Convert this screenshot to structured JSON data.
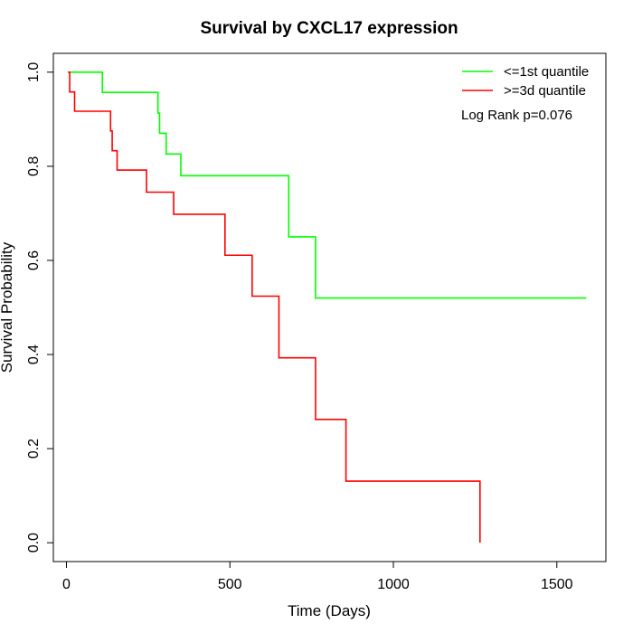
{
  "chart_data": {
    "type": "line",
    "title": "Survival by CXCL17 expression",
    "xlabel": "Time (Days)",
    "ylabel": "Survival Probability",
    "xlim": [
      -40,
      1650
    ],
    "ylim": [
      -0.04,
      1.04
    ],
    "x_ticks": [
      0,
      500,
      1000,
      1500
    ],
    "x_tick_labels": [
      "0",
      "500",
      "1000",
      "1500"
    ],
    "y_ticks": [
      0.0,
      0.2,
      0.4,
      0.6,
      0.8,
      1.0
    ],
    "y_tick_labels": [
      "0.0",
      "0.2",
      "0.4",
      "0.6",
      "0.8",
      "1.0"
    ],
    "grid": false,
    "legend_position": "top-right",
    "annotation": "Log Rank p=0.076",
    "series": [
      {
        "name": "<=1st quantile",
        "color": "#00ff00",
        "step": true,
        "points": [
          [
            5,
            1.0
          ],
          [
            110,
            0.957
          ],
          [
            280,
            0.913
          ],
          [
            285,
            0.87
          ],
          [
            305,
            0.826
          ],
          [
            350,
            0.78
          ],
          [
            680,
            0.65
          ],
          [
            762,
            0.52
          ],
          [
            1590,
            0.52
          ]
        ]
      },
      {
        "name": ">=3d quantile",
        "color": "#ff0000",
        "step": true,
        "points": [
          [
            5,
            1.0
          ],
          [
            10,
            0.958
          ],
          [
            25,
            0.917
          ],
          [
            135,
            0.875
          ],
          [
            140,
            0.833
          ],
          [
            155,
            0.792
          ],
          [
            245,
            0.745
          ],
          [
            328,
            0.698
          ],
          [
            485,
            0.611
          ],
          [
            568,
            0.524
          ],
          [
            650,
            0.393
          ],
          [
            762,
            0.262
          ],
          [
            855,
            0.131
          ],
          [
            1265,
            0.131
          ],
          [
            1265,
            0.0
          ]
        ]
      }
    ]
  }
}
